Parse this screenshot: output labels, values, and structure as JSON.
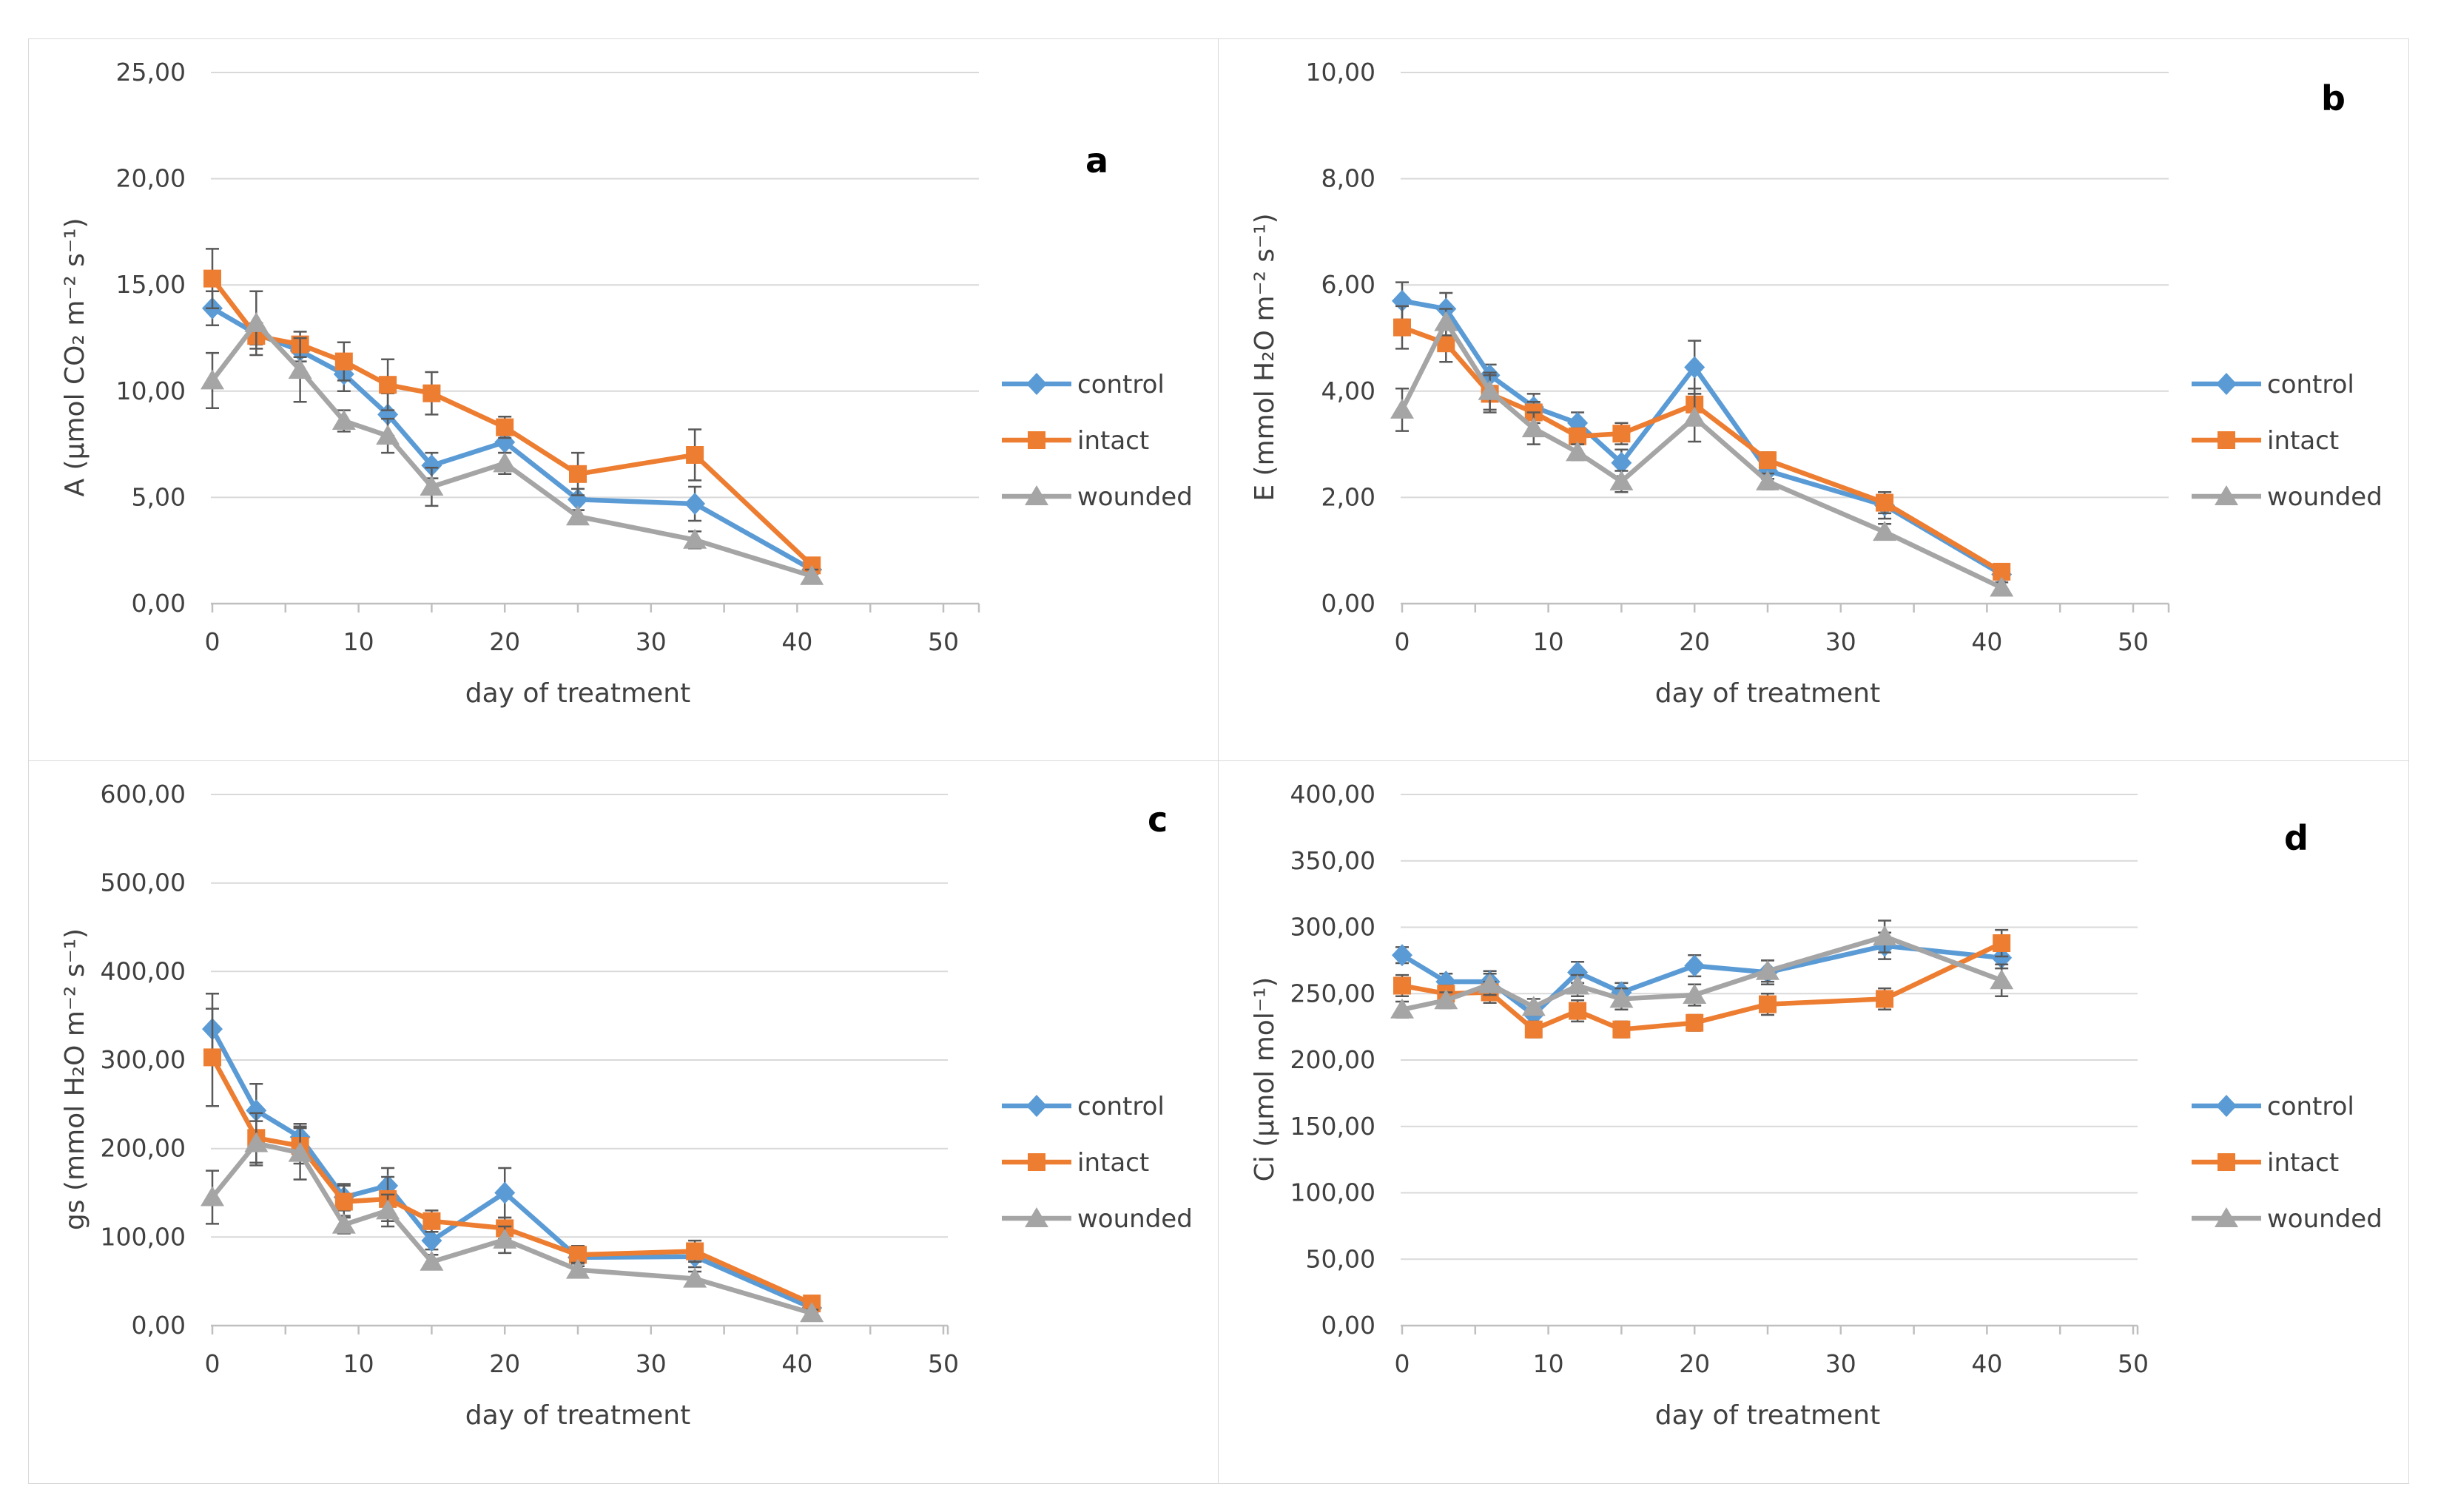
{
  "figure": {
    "background": "#FFFFFF",
    "border_color": "#D9D9D9",
    "xlabel": "day of treatment",
    "x_ticks": {
      "values": [
        0,
        10,
        20,
        30,
        40,
        50
      ],
      "labels": [
        "0",
        "10",
        "20",
        "30",
        "40",
        "50"
      ],
      "minor_step": 5
    },
    "colors": {
      "control": "#5B9BD5",
      "intact": "#ED7D31",
      "wounded": "#A5A5A5",
      "error_bar": "#595959",
      "gridline": "#D9D9D9",
      "axis_line": "#BFBFBF",
      "text": "#404040",
      "panel_letter": "#000000"
    },
    "legend_labels": [
      "control",
      "intact",
      "wounded"
    ]
  },
  "chart_data": [
    {
      "panel_label": "a",
      "type": "line",
      "xlabel": "day of treatment",
      "ylabel": "A (µmol CO₂ m⁻² s⁻¹)",
      "x": [
        0,
        3,
        6,
        9,
        12,
        15,
        20,
        25,
        33,
        41
      ],
      "xlim": [
        0,
        50
      ],
      "ylim": [
        0,
        25
      ],
      "yticks": {
        "values": [
          0,
          5,
          10,
          15,
          20,
          25
        ],
        "labels": [
          "0,00",
          "5,00",
          "10,00",
          "15,00",
          "20,00",
          "25,00"
        ]
      },
      "grid": "horizontal",
      "legend_position": "right",
      "series": [
        {
          "name": "control",
          "color": "#5B9BD5",
          "marker": "diamond",
          "values": [
            13.9,
            12.7,
            11.9,
            10.8,
            8.9,
            6.5,
            7.6,
            4.9,
            4.7,
            1.6
          ],
          "errors": [
            0.8,
            0.5,
            0.5,
            0.8,
            1.0,
            0.6,
            0.5,
            0.5,
            0.8,
            0.2
          ]
        },
        {
          "name": "intact",
          "color": "#ED7D31",
          "marker": "square",
          "values": [
            15.3,
            12.6,
            12.2,
            11.4,
            10.3,
            9.9,
            8.3,
            6.1,
            7.0,
            1.8
          ],
          "errors": [
            1.4,
            0.6,
            0.6,
            0.9,
            1.2,
            1.0,
            0.5,
            1.0,
            1.2,
            0.2
          ]
        },
        {
          "name": "wounded",
          "color": "#A5A5A5",
          "marker": "triangle",
          "values": [
            10.5,
            13.2,
            11.0,
            8.6,
            7.9,
            5.5,
            6.6,
            4.1,
            3.0,
            1.3
          ],
          "errors": [
            1.3,
            1.5,
            1.5,
            0.5,
            0.8,
            0.9,
            0.5,
            0.3,
            0.4,
            0.3
          ]
        }
      ]
    },
    {
      "panel_label": "b",
      "type": "line",
      "xlabel": "day of treatment",
      "ylabel": "E (mmol H₂O m⁻² s⁻¹)",
      "x": [
        0,
        3,
        6,
        9,
        12,
        15,
        20,
        25,
        33,
        41
      ],
      "xlim": [
        0,
        50
      ],
      "ylim": [
        0,
        10
      ],
      "yticks": {
        "values": [
          0,
          2,
          4,
          6,
          8,
          10
        ],
        "labels": [
          "0,00",
          "2,00",
          "4,00",
          "6,00",
          "8,00",
          "10,00"
        ]
      },
      "grid": "horizontal",
      "legend_position": "right",
      "series": [
        {
          "name": "control",
          "color": "#5B9BD5",
          "marker": "diamond",
          "values": [
            5.7,
            5.55,
            4.3,
            3.7,
            3.4,
            2.65,
            4.45,
            2.5,
            1.85,
            0.55
          ],
          "errors": [
            0.35,
            0.3,
            0.2,
            0.25,
            0.2,
            0.25,
            0.5,
            0.15,
            0.25,
            0.1
          ]
        },
        {
          "name": "intact",
          "color": "#ED7D31",
          "marker": "square",
          "values": [
            5.2,
            4.9,
            3.95,
            3.6,
            3.15,
            3.2,
            3.75,
            2.7,
            1.9,
            0.6
          ],
          "errors": [
            0.4,
            0.35,
            0.35,
            0.2,
            0.15,
            0.2,
            0.3,
            0.15,
            0.2,
            0.1
          ]
        },
        {
          "name": "wounded",
          "color": "#A5A5A5",
          "marker": "triangle",
          "values": [
            3.65,
            5.3,
            4.0,
            3.3,
            2.85,
            2.3,
            3.5,
            2.3,
            1.35,
            0.3
          ],
          "errors": [
            0.4,
            0.25,
            0.35,
            0.3,
            0.15,
            0.2,
            0.45,
            0.15,
            0.15,
            0.1
          ]
        }
      ]
    },
    {
      "panel_label": "c",
      "type": "line",
      "xlabel": "day of treatment",
      "ylabel": "gs (mmol H₂O m⁻² s⁻¹)",
      "x": [
        0,
        3,
        6,
        9,
        12,
        15,
        20,
        25,
        33,
        41
      ],
      "xlim": [
        0,
        50
      ],
      "ylim": [
        0,
        600
      ],
      "yticks": {
        "values": [
          0,
          100,
          200,
          300,
          400,
          500,
          600
        ],
        "labels": [
          "0,00",
          "100,00",
          "200,00",
          "300,00",
          "400,00",
          "500,00",
          "600,00"
        ]
      },
      "grid": "horizontal",
      "legend_position": "right",
      "series": [
        {
          "name": "control",
          "color": "#5B9BD5",
          "marker": "diamond",
          "values": [
            335,
            243,
            213,
            145,
            158,
            96,
            150,
            77,
            78,
            20
          ],
          "errors": [
            40,
            30,
            15,
            15,
            20,
            10,
            28,
            10,
            12,
            5
          ]
        },
        {
          "name": "intact",
          "color": "#ED7D31",
          "marker": "square",
          "values": [
            303,
            212,
            203,
            140,
            143,
            118,
            110,
            80,
            84,
            25
          ],
          "errors": [
            55,
            28,
            20,
            18,
            25,
            12,
            12,
            10,
            12,
            5
          ]
        },
        {
          "name": "wounded",
          "color": "#A5A5A5",
          "marker": "triangle",
          "values": [
            145,
            206,
            195,
            114,
            130,
            72,
            97,
            63,
            53,
            14
          ],
          "errors": [
            30,
            25,
            30,
            10,
            18,
            8,
            15,
            8,
            8,
            4
          ]
        }
      ]
    },
    {
      "panel_label": "d",
      "type": "line",
      "xlabel": "day of treatment",
      "ylabel": "Ci (µmol mol⁻¹)",
      "x": [
        0,
        3,
        6,
        9,
        12,
        15,
        20,
        25,
        33,
        41
      ],
      "xlim": [
        0,
        50
      ],
      "ylim": [
        0,
        400
      ],
      "yticks": {
        "values": [
          0,
          50,
          100,
          150,
          200,
          250,
          300,
          350,
          400
        ],
        "labels": [
          "0,00",
          "50,00",
          "100,00",
          "150,00",
          "200,00",
          "250,00",
          "300,00",
          "350,00",
          "400,00"
        ]
      },
      "grid": "horizontal",
      "legend_position": "right",
      "series": [
        {
          "name": "control",
          "color": "#5B9BD5",
          "marker": "diamond",
          "values": [
            279,
            259,
            259,
            234,
            266,
            251,
            271,
            266,
            286,
            277
          ],
          "errors": [
            6,
            6,
            8,
            7,
            8,
            7,
            8,
            9,
            10,
            8
          ]
        },
        {
          "name": "intact",
          "color": "#ED7D31",
          "marker": "square",
          "values": [
            256,
            250,
            251,
            223,
            237,
            223,
            228,
            242,
            246,
            288
          ],
          "errors": [
            8,
            6,
            8,
            6,
            8,
            6,
            6,
            8,
            8,
            10
          ]
        },
        {
          "name": "wounded",
          "color": "#A5A5A5",
          "marker": "triangle",
          "values": [
            238,
            245,
            257,
            240,
            256,
            246,
            249,
            267,
            293,
            260
          ],
          "errors": [
            6,
            6,
            8,
            6,
            8,
            8,
            8,
            8,
            12,
            12
          ]
        }
      ]
    }
  ]
}
